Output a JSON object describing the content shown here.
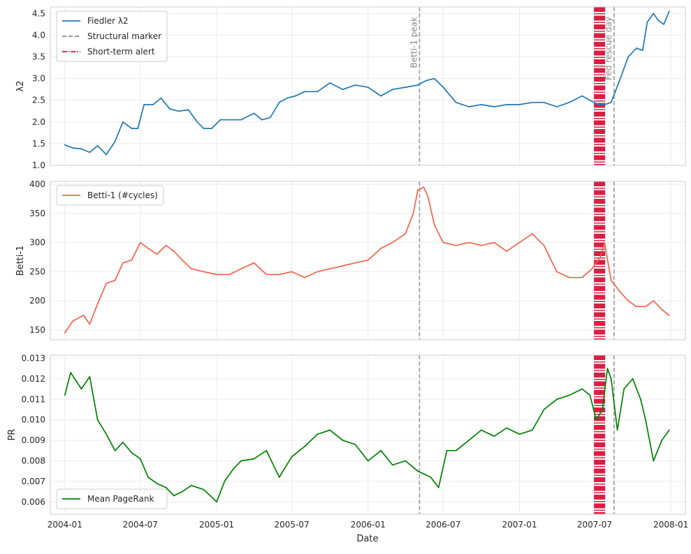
{
  "x_axis": {
    "label": "Date",
    "ticks": [
      "2004-01",
      "2004-07",
      "2005-01",
      "2005-07",
      "2006-01",
      "2006-07",
      "2007-01",
      "2007-07",
      "2008-01"
    ]
  },
  "markers": {
    "structural": [
      {
        "date": "2006-05-05",
        "label": "Betti-1 peak"
      },
      {
        "date": "2007-08-17",
        "label": "Fed rescue day"
      }
    ],
    "alert_dates": [
      "2007-07-01",
      "2007-07-04",
      "2007-07-07",
      "2007-07-10",
      "2007-07-13",
      "2007-07-16",
      "2007-07-19",
      "2007-07-22",
      "2007-07-25"
    ]
  },
  "colors": {
    "lambda2": "#1f77b4",
    "betti": "#f4624b",
    "pagerank": "#008000",
    "structural": "#999999",
    "alert": "#dc143c",
    "grid": "#ebebeb",
    "frame": "#cccccc"
  },
  "chart_data": [
    {
      "type": "line",
      "ylabel": "λ2",
      "ylim": [
        1.0,
        4.65
      ],
      "yticks": [
        "1.0",
        "1.5",
        "2.0",
        "2.5",
        "3.0",
        "3.5",
        "4.0",
        "4.5"
      ],
      "legend": {
        "placement": "top-left",
        "entries": [
          "Fiedler λ2",
          "Structural marker",
          "Short-term alert"
        ]
      },
      "grid": true,
      "series": [
        {
          "name": "Fiedler λ2",
          "x": [
            "2004-01-01",
            "2004-01-20",
            "2004-02-10",
            "2004-03-01",
            "2004-03-20",
            "2004-04-10",
            "2004-05-01",
            "2004-05-20",
            "2004-06-10",
            "2004-06-25",
            "2004-07-10",
            "2004-08-01",
            "2004-08-20",
            "2004-09-10",
            "2004-10-01",
            "2004-10-25",
            "2004-11-15",
            "2004-12-01",
            "2004-12-20",
            "2005-01-10",
            "2005-02-01",
            "2005-03-01",
            "2005-04-01",
            "2005-04-20",
            "2005-05-10",
            "2005-06-01",
            "2005-06-20",
            "2005-07-10",
            "2005-08-01",
            "2005-09-01",
            "2005-10-01",
            "2005-11-01",
            "2005-12-01",
            "2006-01-01",
            "2006-02-01",
            "2006-03-01",
            "2006-04-01",
            "2006-05-01",
            "2006-05-20",
            "2006-06-10",
            "2006-07-01",
            "2006-08-01",
            "2006-09-01",
            "2006-10-01",
            "2006-11-01",
            "2006-12-01",
            "2007-01-01",
            "2007-02-01",
            "2007-03-01",
            "2007-04-01",
            "2007-05-01",
            "2007-06-01",
            "2007-06-20",
            "2007-07-10",
            "2007-07-25",
            "2007-08-10",
            "2007-09-01",
            "2007-09-20",
            "2007-10-10",
            "2007-10-25",
            "2007-11-05",
            "2007-11-20",
            "2007-12-01",
            "2007-12-15",
            "2007-12-28"
          ],
          "values": [
            1.47,
            1.4,
            1.38,
            1.3,
            1.45,
            1.25,
            1.55,
            2.0,
            1.85,
            1.85,
            2.4,
            2.4,
            2.55,
            2.3,
            2.25,
            2.28,
            2.0,
            1.85,
            1.85,
            2.05,
            2.05,
            2.05,
            2.2,
            2.05,
            2.1,
            2.45,
            2.55,
            2.6,
            2.7,
            2.7,
            2.9,
            2.75,
            2.85,
            2.8,
            2.6,
            2.75,
            2.8,
            2.85,
            2.95,
            3.0,
            2.8,
            2.45,
            2.35,
            2.4,
            2.35,
            2.4,
            2.4,
            2.45,
            2.45,
            2.35,
            2.45,
            2.6,
            2.5,
            2.4,
            2.4,
            2.45,
            3.0,
            3.5,
            3.7,
            3.65,
            4.3,
            4.5,
            4.35,
            4.25,
            4.55
          ]
        }
      ]
    },
    {
      "type": "line",
      "ylabel": "Betti-1",
      "ylim": [
        133,
        405
      ],
      "yticks": [
        "150",
        "200",
        "250",
        "300",
        "350",
        "400"
      ],
      "legend": {
        "placement": "top-left",
        "entries": [
          "Betti-1 (#cycles)"
        ]
      },
      "grid": true,
      "series": [
        {
          "name": "Betti-1 (#cycles)",
          "x": [
            "2004-01-01",
            "2004-01-20",
            "2004-02-15",
            "2004-03-01",
            "2004-03-20",
            "2004-04-10",
            "2004-05-01",
            "2004-05-20",
            "2004-06-10",
            "2004-07-01",
            "2004-07-20",
            "2004-08-10",
            "2004-09-01",
            "2004-09-20",
            "2004-10-10",
            "2004-11-01",
            "2004-12-01",
            "2005-01-01",
            "2005-02-01",
            "2005-03-01",
            "2005-04-01",
            "2005-05-01",
            "2005-06-01",
            "2005-07-01",
            "2005-08-01",
            "2005-09-01",
            "2005-10-01",
            "2005-11-01",
            "2005-12-01",
            "2006-01-01",
            "2006-02-01",
            "2006-03-01",
            "2006-04-01",
            "2006-04-20",
            "2006-05-01",
            "2006-05-15",
            "2006-05-25",
            "2006-06-10",
            "2006-07-01",
            "2006-08-01",
            "2006-09-01",
            "2006-10-01",
            "2006-11-01",
            "2006-12-01",
            "2007-01-01",
            "2007-02-01",
            "2007-03-01",
            "2007-04-01",
            "2007-05-01",
            "2007-06-01",
            "2007-06-25",
            "2007-07-15",
            "2007-07-25",
            "2007-08-10",
            "2007-09-01",
            "2007-09-20",
            "2007-10-10",
            "2007-11-01",
            "2007-11-20",
            "2007-12-10",
            "2007-12-28"
          ],
          "values": [
            145,
            165,
            175,
            160,
            195,
            230,
            235,
            265,
            270,
            300,
            290,
            280,
            295,
            285,
            270,
            255,
            250,
            245,
            245,
            255,
            265,
            245,
            245,
            250,
            240,
            250,
            255,
            260,
            265,
            270,
            290,
            300,
            315,
            350,
            390,
            395,
            380,
            330,
            300,
            295,
            300,
            295,
            300,
            285,
            300,
            315,
            295,
            250,
            240,
            240,
            255,
            275,
            300,
            235,
            215,
            200,
            190,
            190,
            200,
            185,
            175
          ]
        }
      ]
    },
    {
      "type": "line",
      "ylabel": "PR",
      "ylim": [
        0.0054,
        0.01315
      ],
      "yticks": [
        "0.006",
        "0.007",
        "0.008",
        "0.009",
        "0.010",
        "0.011",
        "0.012",
        "0.013"
      ],
      "legend": {
        "placement": "bottom-left",
        "entries": [
          "Mean PageRank"
        ]
      },
      "grid": true,
      "series": [
        {
          "name": "Mean PageRank",
          "x": [
            "2004-01-01",
            "2004-01-15",
            "2004-02-10",
            "2004-03-01",
            "2004-03-20",
            "2004-04-10",
            "2004-05-01",
            "2004-05-20",
            "2004-06-10",
            "2004-07-01",
            "2004-07-20",
            "2004-08-10",
            "2004-09-01",
            "2004-09-20",
            "2004-10-10",
            "2004-11-01",
            "2004-12-01",
            "2005-01-01",
            "2005-01-20",
            "2005-02-10",
            "2005-03-01",
            "2005-04-01",
            "2005-05-01",
            "2005-06-01",
            "2005-07-01",
            "2005-08-01",
            "2005-09-01",
            "2005-10-01",
            "2005-11-01",
            "2005-12-01",
            "2006-01-01",
            "2006-02-01",
            "2006-03-01",
            "2006-04-01",
            "2006-05-01",
            "2006-06-01",
            "2006-06-20",
            "2006-07-10",
            "2006-08-01",
            "2006-09-01",
            "2006-10-01",
            "2006-11-01",
            "2006-12-01",
            "2007-01-01",
            "2007-02-01",
            "2007-03-01",
            "2007-04-01",
            "2007-05-01",
            "2007-06-01",
            "2007-06-20",
            "2007-07-05",
            "2007-07-20",
            "2007-08-01",
            "2007-08-10",
            "2007-08-25",
            "2007-09-10",
            "2007-10-01",
            "2007-10-20",
            "2007-11-01",
            "2007-11-20",
            "2007-12-10",
            "2007-12-28"
          ],
          "values": [
            0.0112,
            0.0123,
            0.0115,
            0.0121,
            0.01,
            0.0093,
            0.0085,
            0.0089,
            0.0084,
            0.0081,
            0.0072,
            0.0069,
            0.0067,
            0.0063,
            0.0065,
            0.0068,
            0.0066,
            0.006,
            0.007,
            0.0076,
            0.008,
            0.0081,
            0.0085,
            0.0072,
            0.0082,
            0.0087,
            0.0093,
            0.0095,
            0.009,
            0.0088,
            0.008,
            0.0085,
            0.0078,
            0.008,
            0.0075,
            0.0072,
            0.0067,
            0.0085,
            0.0085,
            0.009,
            0.0095,
            0.0092,
            0.0096,
            0.0093,
            0.0095,
            0.0105,
            0.011,
            0.0112,
            0.0115,
            0.0112,
            0.01,
            0.0105,
            0.0125,
            0.012,
            0.0095,
            0.0115,
            0.012,
            0.011,
            0.01,
            0.008,
            0.009,
            0.0095
          ]
        }
      ]
    }
  ]
}
